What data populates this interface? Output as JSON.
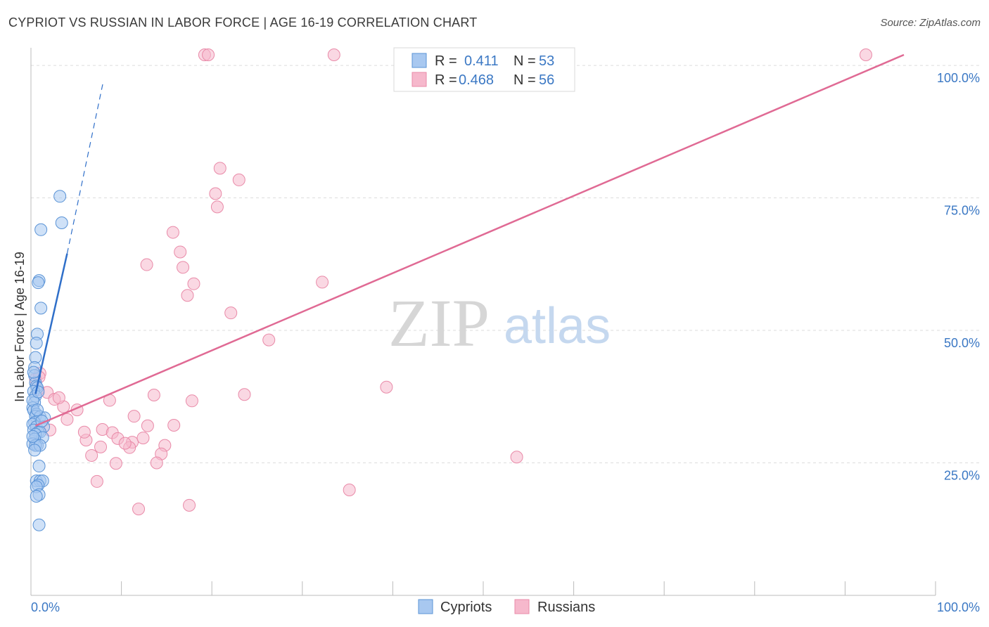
{
  "header": {
    "title": "CYPRIOT VS RUSSIAN IN LABOR FORCE | AGE 16-19 CORRELATION CHART",
    "source": "Source: ZipAtlas.com"
  },
  "watermark": {
    "zip": "ZIP",
    "atlas": "atlas"
  },
  "legend_box": {
    "rows": [
      {
        "r_label": "R = ",
        "r_value": "0.411",
        "n_label": "N = ",
        "n_value": "53",
        "color": "#a8c8f0"
      },
      {
        "r_label": "R = ",
        "r_value": "0.468",
        "n_label": "N = ",
        "n_value": "56",
        "color": "#f6b8cc"
      }
    ]
  },
  "bottom_legend": [
    {
      "label": "Cypriots",
      "color": "#a8c8f0"
    },
    {
      "label": "Russians",
      "color": "#f6b8cc"
    }
  ],
  "colors": {
    "cypriot_fill": "#a8c8f0",
    "cypriot_stroke": "#5a93d6",
    "cypriot_line": "#2f6fc9",
    "russian_fill": "#f6b8cc",
    "russian_stroke": "#e98aa8",
    "russian_line": "#e06a94",
    "grid": "#dddddd",
    "tick_text": "#3b78c4"
  },
  "chart_data": {
    "type": "scatter",
    "title": "CYPRIOT VS RUSSIAN IN LABOR FORCE | AGE 16-19 CORRELATION CHART",
    "xlabel": "",
    "ylabel": "In Labor Force | Age 16-19",
    "xlim": [
      0,
      100
    ],
    "ylim": [
      0,
      102
    ],
    "x_tick_labels": [
      {
        "value": 0,
        "label": "0.0%"
      },
      {
        "value": 100,
        "label": "100.0%"
      }
    ],
    "y_tick_labels": [
      {
        "value": 25,
        "label": "25.0%"
      },
      {
        "value": 50,
        "label": "50.0%"
      },
      {
        "value": 75,
        "label": "75.0%"
      },
      {
        "value": 100,
        "label": "100.0%"
      }
    ],
    "grid": true,
    "legend_position": "top-center",
    "series": [
      {
        "name": "Cypriots",
        "r": 0.411,
        "n": 53,
        "trend": {
          "x0": 0.5,
          "y0": 38.0,
          "x1": 4.0,
          "y1": 64.5,
          "dash_to_x": 8.0,
          "dash_to_y": 97.0
        },
        "points": [
          [
            3.2,
            75.3
          ],
          [
            3.4,
            70.3
          ],
          [
            1.1,
            69.0
          ],
          [
            0.9,
            59.4
          ],
          [
            0.8,
            59.0
          ],
          [
            1.1,
            54.2
          ],
          [
            0.7,
            49.3
          ],
          [
            0.6,
            47.6
          ],
          [
            0.5,
            44.9
          ],
          [
            0.4,
            43.0
          ],
          [
            0.4,
            41.5
          ],
          [
            0.5,
            40.1
          ],
          [
            0.6,
            39.5
          ],
          [
            0.7,
            39.2
          ],
          [
            0.3,
            38.5
          ],
          [
            0.5,
            37.6
          ],
          [
            0.4,
            36.4
          ],
          [
            0.2,
            35.4
          ],
          [
            0.3,
            34.9
          ],
          [
            0.6,
            34.2
          ],
          [
            0.5,
            33.8
          ],
          [
            1.0,
            33.7
          ],
          [
            1.5,
            33.5
          ],
          [
            0.4,
            32.6
          ],
          [
            0.2,
            32.3
          ],
          [
            0.6,
            31.8
          ],
          [
            1.4,
            31.8
          ],
          [
            0.3,
            31.2
          ],
          [
            0.8,
            30.8
          ],
          [
            1.0,
            30.8
          ],
          [
            0.5,
            30.4
          ],
          [
            1.3,
            29.8
          ],
          [
            0.4,
            29.5
          ],
          [
            0.2,
            28.6
          ],
          [
            0.7,
            28.3
          ],
          [
            0.5,
            28.3
          ],
          [
            1.0,
            28.3
          ],
          [
            0.9,
            24.4
          ],
          [
            0.6,
            21.6
          ],
          [
            1.0,
            21.6
          ],
          [
            1.3,
            21.6
          ],
          [
            0.8,
            20.8
          ],
          [
            0.6,
            20.5
          ],
          [
            0.9,
            19.0
          ],
          [
            0.6,
            18.7
          ],
          [
            0.9,
            13.3
          ],
          [
            0.3,
            42.1
          ],
          [
            0.2,
            36.8
          ],
          [
            0.7,
            35.0
          ],
          [
            0.4,
            27.4
          ],
          [
            1.2,
            32.9
          ],
          [
            0.2,
            30.0
          ],
          [
            0.8,
            38.4
          ]
        ]
      },
      {
        "name": "Russians",
        "r": 0.468,
        "n": 56,
        "trend": {
          "x0": 0.5,
          "y0": 32.0,
          "x1": 96.5,
          "y1": 102.0
        },
        "points": [
          [
            19.2,
            102.0
          ],
          [
            19.6,
            102.0
          ],
          [
            33.5,
            102.0
          ],
          [
            92.3,
            102.0
          ],
          [
            20.9,
            80.6
          ],
          [
            23.0,
            78.4
          ],
          [
            20.4,
            75.8
          ],
          [
            20.6,
            73.3
          ],
          [
            15.7,
            68.5
          ],
          [
            16.5,
            64.8
          ],
          [
            12.8,
            62.4
          ],
          [
            16.8,
            61.9
          ],
          [
            18.0,
            58.8
          ],
          [
            32.2,
            59.1
          ],
          [
            17.3,
            56.6
          ],
          [
            22.1,
            53.3
          ],
          [
            26.3,
            48.2
          ],
          [
            39.3,
            39.3
          ],
          [
            23.6,
            37.9
          ],
          [
            13.6,
            37.8
          ],
          [
            17.8,
            36.7
          ],
          [
            8.7,
            36.8
          ],
          [
            1.8,
            38.3
          ],
          [
            2.6,
            37.0
          ],
          [
            1.0,
            41.9
          ],
          [
            0.5,
            40.8
          ],
          [
            0.9,
            41.2
          ],
          [
            3.6,
            35.6
          ],
          [
            5.1,
            35.0
          ],
          [
            11.4,
            33.8
          ],
          [
            4.0,
            33.2
          ],
          [
            7.9,
            31.3
          ],
          [
            12.9,
            32.0
          ],
          [
            15.8,
            32.1
          ],
          [
            9.0,
            30.7
          ],
          [
            9.6,
            29.6
          ],
          [
            11.2,
            28.9
          ],
          [
            12.4,
            29.7
          ],
          [
            6.1,
            29.3
          ],
          [
            14.8,
            28.3
          ],
          [
            7.7,
            28.0
          ],
          [
            10.9,
            27.9
          ],
          [
            5.9,
            30.8
          ],
          [
            10.4,
            28.7
          ],
          [
            6.7,
            26.4
          ],
          [
            14.4,
            26.7
          ],
          [
            53.7,
            26.1
          ],
          [
            13.9,
            25.0
          ],
          [
            9.4,
            24.9
          ],
          [
            7.3,
            21.5
          ],
          [
            35.2,
            19.9
          ],
          [
            17.5,
            17.0
          ],
          [
            11.9,
            16.3
          ],
          [
            2.1,
            31.2
          ],
          [
            0.8,
            38.8
          ],
          [
            3.1,
            37.3
          ]
        ]
      }
    ]
  }
}
